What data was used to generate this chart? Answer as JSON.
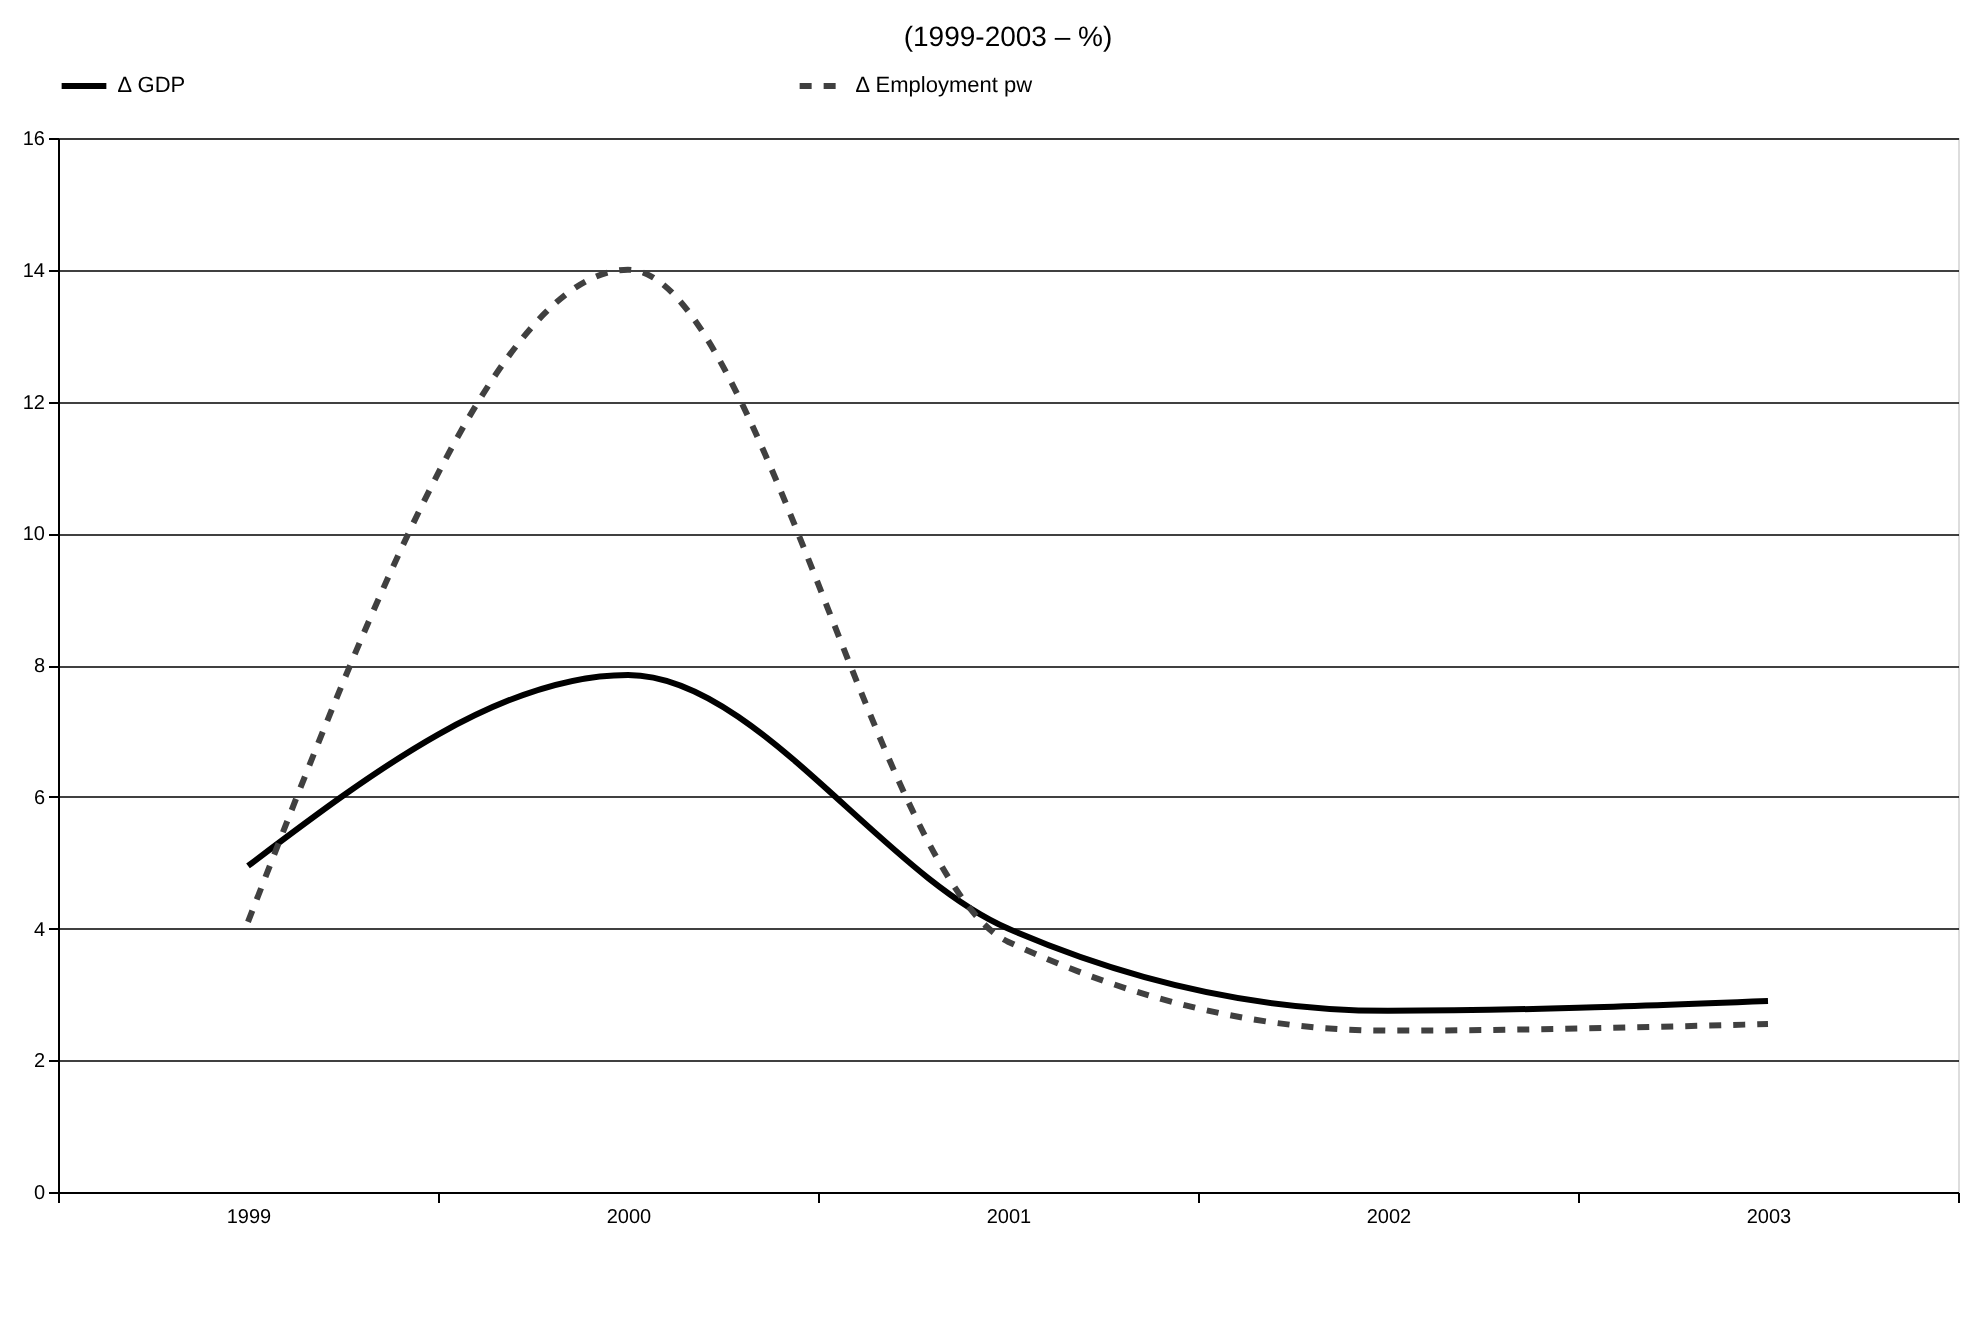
{
  "chart_data": {
    "type": "line",
    "title": "(1999-2003 – %)",
    "categories": [
      "1999",
      "2000",
      "2001",
      "2002",
      "2003"
    ],
    "series": [
      {
        "name": "∆ GDP",
        "color": "#000000",
        "line_style": "solid",
        "values": [
          4.95,
          7.85,
          4.0,
          2.75,
          2.9
        ]
      },
      {
        "name": "∆ Employment pw",
        "color": "#404040",
        "line_style": "dashed",
        "values": [
          4.1,
          14.0,
          3.8,
          2.45,
          2.55
        ]
      }
    ],
    "ylim": [
      0,
      16
    ],
    "yticks": [
      0,
      2,
      4,
      6,
      8,
      10,
      12,
      14,
      16
    ],
    "grid": "y",
    "legend": "top",
    "marker": "none"
  }
}
